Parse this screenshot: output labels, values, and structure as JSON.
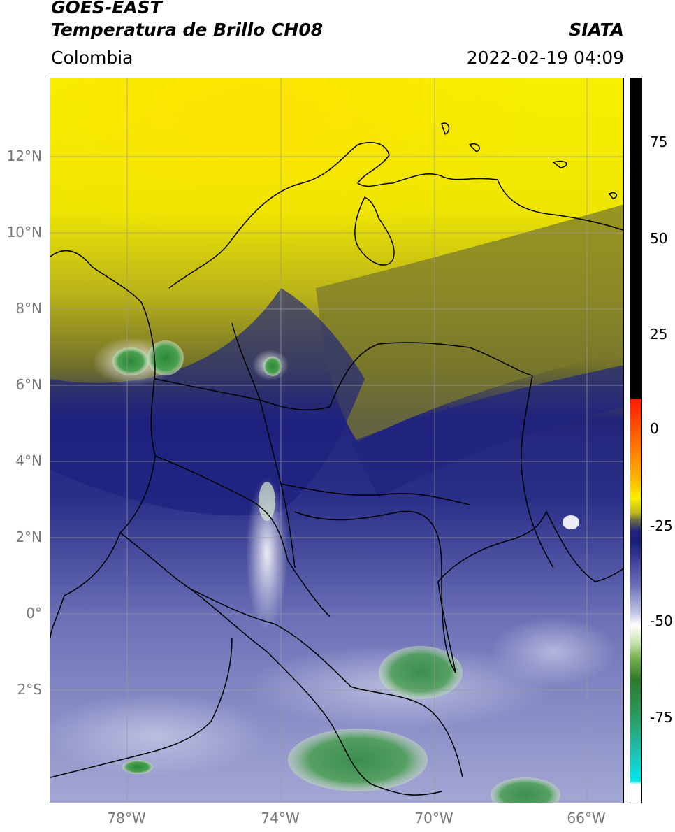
{
  "header": {
    "satellite": "GOES-EAST",
    "product": "Temperatura de Brillo CH08",
    "region": "Colombia",
    "organization": "SIATA",
    "datetime": "2022-02-19 04:09"
  },
  "axes": {
    "lat_labels": [
      "12°N",
      "10°N",
      "8°N",
      "6°N",
      "4°N",
      "2°N",
      "0°",
      "2°S"
    ],
    "lon_labels": [
      "78°W",
      "74°W",
      "70°W",
      "66°W"
    ]
  },
  "colorbar": {
    "ticks": [
      "75",
      "50",
      "25",
      "0",
      "-25",
      "-50",
      "-75"
    ]
  },
  "colors": {
    "warm_yellow": "#f5f000",
    "olive": "#8c8a1e",
    "navy": "#1a1f7a",
    "lavender": "#8a8fc8",
    "white_cloud": "#eef0f8",
    "deep_green": "#2f8f3f",
    "cyan": "#18d8d8",
    "red": "#ff2a00",
    "black": "#000000"
  }
}
